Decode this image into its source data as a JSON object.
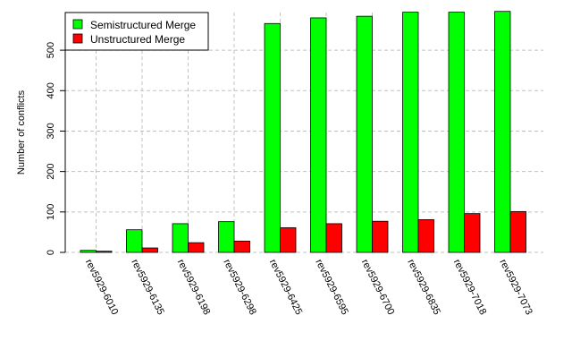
{
  "chart_data": {
    "type": "bar",
    "title": "",
    "xlabel": "",
    "ylabel": "Number of conflicts",
    "ylim": [
      0,
      600
    ],
    "yticks": [
      0,
      100,
      200,
      300,
      400,
      500
    ],
    "grid": true,
    "legend_position": "top-left",
    "categories": [
      "rev5929-6010",
      "rev5929-6135",
      "rev5929-6198",
      "rev5929-6298",
      "rev5929-6425",
      "rev5929-6595",
      "rev5929-6700",
      "rev5929-6835",
      "rev5929-7018",
      "rev5929-7073"
    ],
    "series": [
      {
        "name": "Semistructured Merge",
        "color": "#00ff00",
        "values": [
          5,
          56,
          71,
          76,
          566,
          580,
          584,
          594,
          594,
          596
        ]
      },
      {
        "name": "Unstructured Merge",
        "color": "#ff0000",
        "values": [
          3,
          11,
          24,
          28,
          61,
          71,
          77,
          81,
          96,
          101
        ]
      }
    ]
  }
}
